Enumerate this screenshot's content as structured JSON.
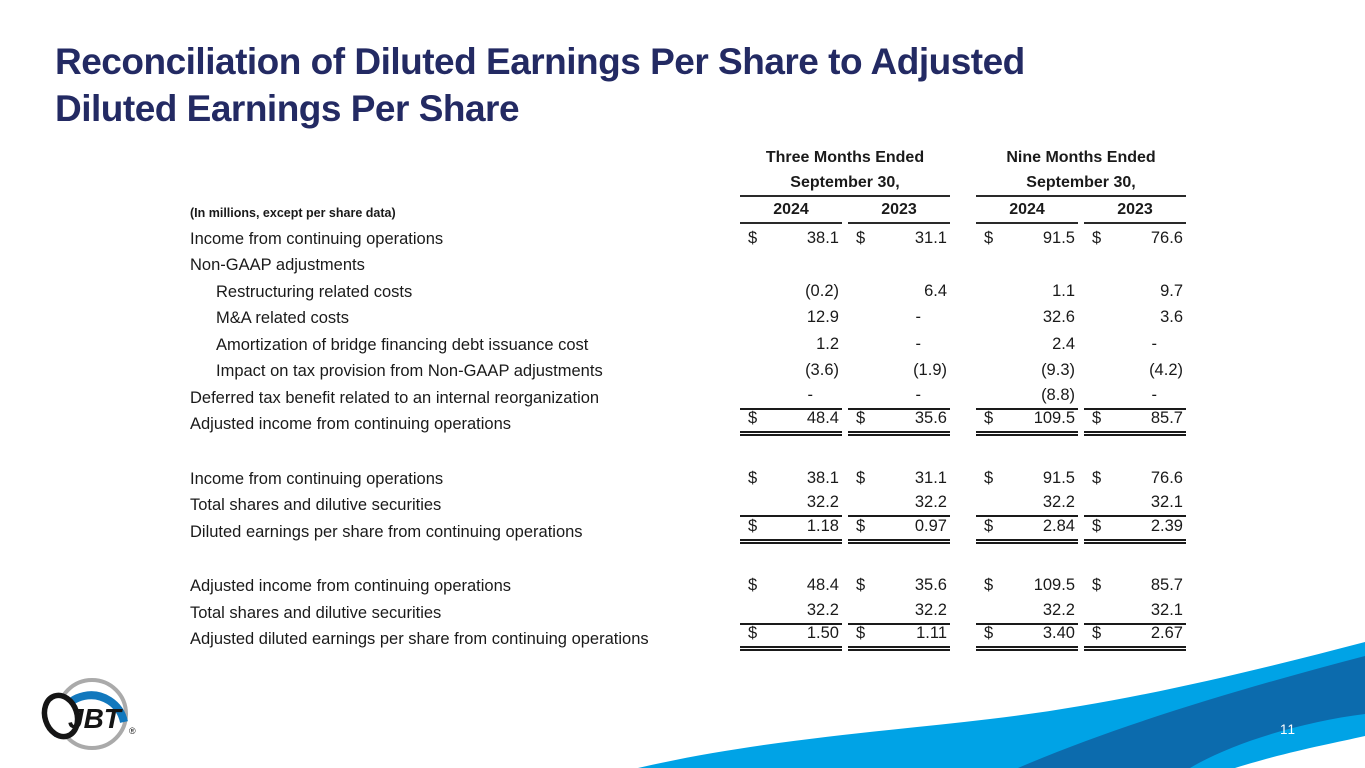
{
  "slide": {
    "title_line1": "Reconciliation of Diluted Earnings Per Share to Adjusted",
    "title_line2": "Diluted Earnings Per Share",
    "page_number": "11",
    "logo_text": "JBT",
    "logo_reg_mark": "®"
  },
  "colors": {
    "title_navy": "#232a63",
    "body_text": "#1a1a1a",
    "wave_light_blue": "#00a3e6",
    "wave_dark_blue": "#0c6bad",
    "logo_blue": "#1278bd",
    "logo_gray": "#aaaaaa"
  },
  "table": {
    "note": "(In millions, except per share data)",
    "col_groups": [
      {
        "line1": "Three Months Ended",
        "line2": "September 30,",
        "years": [
          "2024",
          "2023"
        ]
      },
      {
        "line1": "Nine Months Ended",
        "line2": "September 30,",
        "years": [
          "2024",
          "2023"
        ]
      }
    ],
    "rows": [
      {
        "label": "Income from continuing operations",
        "indent": 0,
        "dollar": true,
        "values": [
          "38.1",
          "31.1",
          "91.5",
          "76.6"
        ],
        "rule": "none",
        "spacer_before": false
      },
      {
        "label": "Non-GAAP adjustments",
        "indent": 0,
        "dollar": false,
        "values": [
          "",
          "",
          "",
          ""
        ],
        "rule": "none",
        "spacer_before": false
      },
      {
        "label": "Restructuring related costs",
        "indent": 1,
        "dollar": false,
        "values": [
          "(0.2)",
          "6.4",
          "1.1",
          "9.7"
        ],
        "rule": "none",
        "spacer_before": false
      },
      {
        "label": "M&A related costs",
        "indent": 1,
        "dollar": false,
        "values": [
          "12.9",
          "-",
          "32.6",
          "3.6"
        ],
        "rule": "none",
        "spacer_before": false
      },
      {
        "label": "Amortization of bridge financing debt issuance cost",
        "indent": 1,
        "dollar": false,
        "values": [
          "1.2",
          "-",
          "2.4",
          "-"
        ],
        "rule": "none",
        "spacer_before": false
      },
      {
        "label": "Impact on tax provision from Non-GAAP adjustments",
        "indent": 1,
        "dollar": false,
        "values": [
          "(3.6)",
          "(1.9)",
          "(9.3)",
          "(4.2)"
        ],
        "rule": "none",
        "spacer_before": false
      },
      {
        "label": "Deferred tax benefit related to an internal reorganization",
        "indent": 0,
        "dollar": false,
        "values": [
          "-",
          "-",
          "(8.8)",
          "-"
        ],
        "rule": "single",
        "spacer_before": false
      },
      {
        "label": "Adjusted income from continuing operations",
        "indent": 0,
        "dollar": true,
        "values": [
          "48.4",
          "35.6",
          "109.5",
          "85.7"
        ],
        "rule": "double",
        "spacer_before": false
      },
      {
        "label": "Income from continuing operations",
        "indent": 0,
        "dollar": true,
        "values": [
          "38.1",
          "31.1",
          "91.5",
          "76.6"
        ],
        "rule": "none",
        "spacer_before": true
      },
      {
        "label": "Total shares and dilutive securities",
        "indent": 0,
        "dollar": false,
        "values": [
          "32.2",
          "32.2",
          "32.2",
          "32.1"
        ],
        "rule": "single",
        "spacer_before": false
      },
      {
        "label": "Diluted earnings per share from continuing operations",
        "indent": 0,
        "dollar": true,
        "values": [
          "1.18",
          "0.97",
          "2.84",
          "2.39"
        ],
        "rule": "double",
        "spacer_before": false
      },
      {
        "label": "Adjusted income from continuing operations",
        "indent": 0,
        "dollar": true,
        "values": [
          "48.4",
          "35.6",
          "109.5",
          "85.7"
        ],
        "rule": "none",
        "spacer_before": true
      },
      {
        "label": "Total shares and dilutive securities",
        "indent": 0,
        "dollar": false,
        "values": [
          "32.2",
          "32.2",
          "32.2",
          "32.1"
        ],
        "rule": "single",
        "spacer_before": false
      },
      {
        "label": "Adjusted diluted earnings per share from continuing operations",
        "indent": 0,
        "dollar": true,
        "values": [
          "1.50",
          "1.11",
          "3.40",
          "2.67"
        ],
        "rule": "double",
        "spacer_before": false
      }
    ],
    "currency_symbol": "$"
  }
}
